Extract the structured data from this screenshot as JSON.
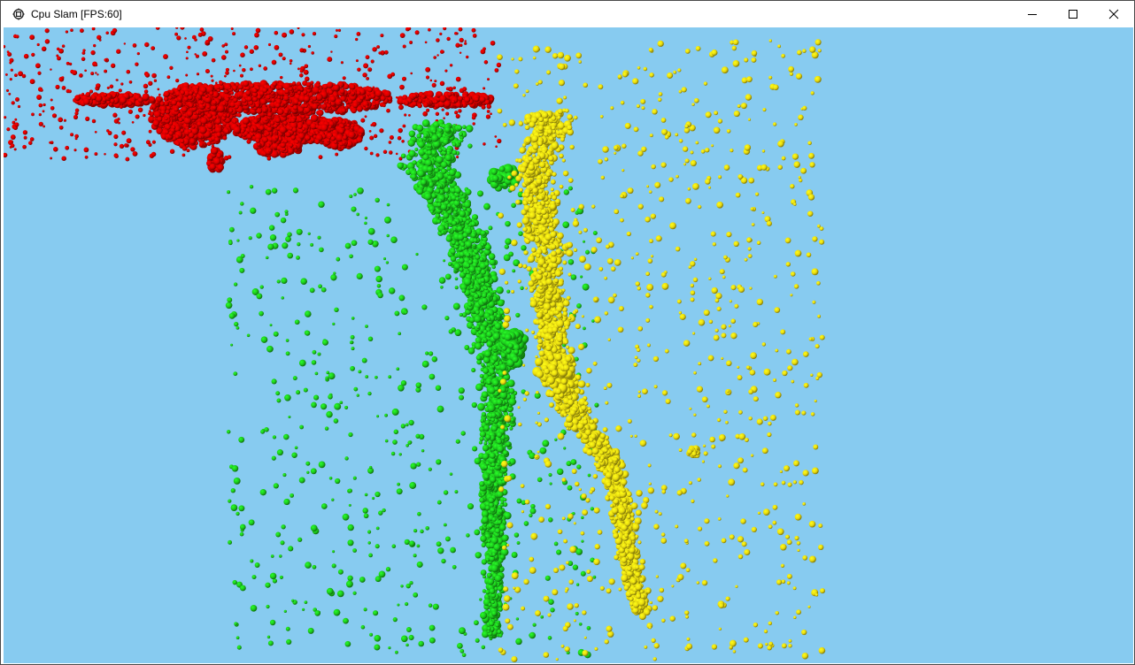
{
  "window": {
    "title": "Cpu Slam [FPS:60]",
    "icon": "gear-window-icon",
    "controls": {
      "minimize_icon": "minimize-icon",
      "maximize_icon": "maximize-icon",
      "close_icon": "close-icon"
    }
  },
  "scene": {
    "background_color": "#87CBF0",
    "clouds": [
      {
        "name": "red-point-cloud-airplane",
        "color": "#D40000"
      },
      {
        "name": "green-point-cloud",
        "color": "#1CC81C"
      },
      {
        "name": "yellow-point-cloud",
        "color": "#E8DA10"
      }
    ]
  }
}
